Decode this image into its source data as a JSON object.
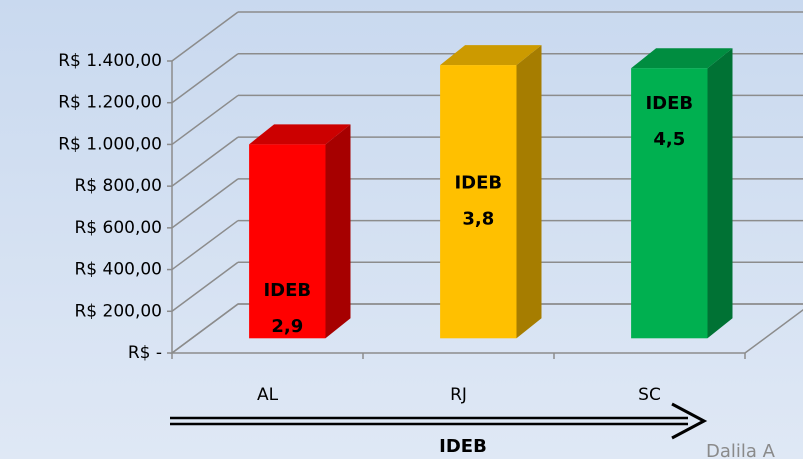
{
  "chart_data": {
    "type": "bar3d",
    "categories": [
      "AL",
      "RJ",
      "SC"
    ],
    "values": [
      930,
      1310,
      1295
    ],
    "colors": [
      "#ff0000",
      "#ffc000",
      "#00b050"
    ],
    "bar_labels": [
      [
        "IDEB",
        "2,9"
      ],
      [
        "IDEB",
        "3,8"
      ],
      [
        "IDEB",
        "4,5"
      ]
    ],
    "ylim": [
      0,
      1400
    ],
    "yticks": [
      {
        "value": 0,
        "label": "R$ -"
      },
      {
        "value": 200,
        "label": "R$ 200,00"
      },
      {
        "value": 400,
        "label": "R$ 400,00"
      },
      {
        "value": 600,
        "label": "R$ 600,00"
      },
      {
        "value": 800,
        "label": "R$ 800,00"
      },
      {
        "value": 1000,
        "label": "R$ 1.000,00"
      },
      {
        "value": 1200,
        "label": "R$ 1.200,00"
      },
      {
        "value": 1400,
        "label": "R$ 1.400,00"
      }
    ],
    "grid": true,
    "xlabel": "IDEB",
    "watermark": "Dalila A"
  }
}
